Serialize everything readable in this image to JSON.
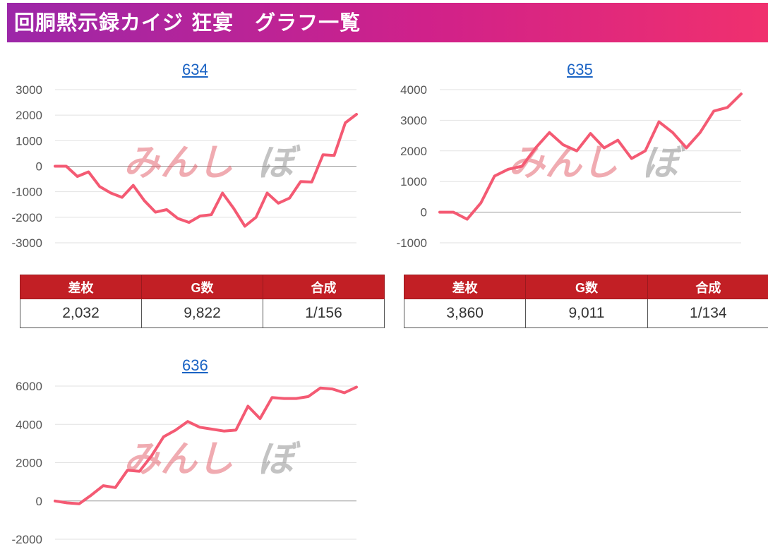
{
  "header": {
    "title": "回胴黙示録カイジ 狂宴　グラフ一覧"
  },
  "watermark": {
    "left": "みんし",
    "right": "ぼ"
  },
  "stat_columns": [
    "差枚",
    "G数",
    "合成"
  ],
  "charts": [
    {
      "link": "634",
      "stats": {
        "diff": "2,032",
        "games": "9,822",
        "rate": "1/156"
      },
      "chart_data": {
        "type": "line",
        "title": "634",
        "ylim": [
          -3000,
          3000
        ],
        "yticks": [
          "3000",
          "2000",
          "1000",
          "0",
          "-1000",
          "-2000",
          "-3000"
        ],
        "grid": true,
        "series": [
          {
            "values": [
              0,
              0,
              -400,
              -220,
              -800,
              -1050,
              -1220,
              -750,
              -1350,
              -1800,
              -1700,
              -2050,
              -2200,
              -1950,
              -1900,
              -1050,
              -1650,
              -2350,
              -2000,
              -1050,
              -1450,
              -1250,
              -600,
              -620,
              450,
              420,
              1700,
              2032
            ]
          }
        ]
      }
    },
    {
      "link": "635",
      "stats": {
        "diff": "3,860",
        "games": "9,011",
        "rate": "1/134"
      },
      "chart_data": {
        "type": "line",
        "title": "635",
        "ylim": [
          -1000,
          4000
        ],
        "yticks": [
          "4000",
          "3000",
          "2000",
          "1000",
          "0",
          "-1000"
        ],
        "grid": true,
        "series": [
          {
            "values": [
              0,
              0,
              -230,
              300,
              1180,
              1400,
              1500,
              2100,
              2600,
              2200,
              2000,
              2570,
              2100,
              2350,
              1750,
              2000,
              2950,
              2600,
              2100,
              2600,
              3300,
              3420,
              3860
            ]
          }
        ]
      }
    },
    {
      "link": "636",
      "chart_data": {
        "type": "line",
        "title": "636",
        "ylim": [
          -2000,
          6000
        ],
        "yticks": [
          "6000",
          "4000",
          "2000",
          "0",
          "-2000"
        ],
        "grid": true,
        "series": [
          {
            "values": [
              0,
              -100,
              -150,
              300,
              800,
              700,
              1600,
              1550,
              2350,
              3350,
              3700,
              4150,
              3850,
              3750,
              3650,
              3700,
              4950,
              4300,
              5400,
              5350,
              5350,
              5450,
              5900,
              5850,
              5650,
              5950
            ]
          }
        ]
      }
    }
  ]
}
